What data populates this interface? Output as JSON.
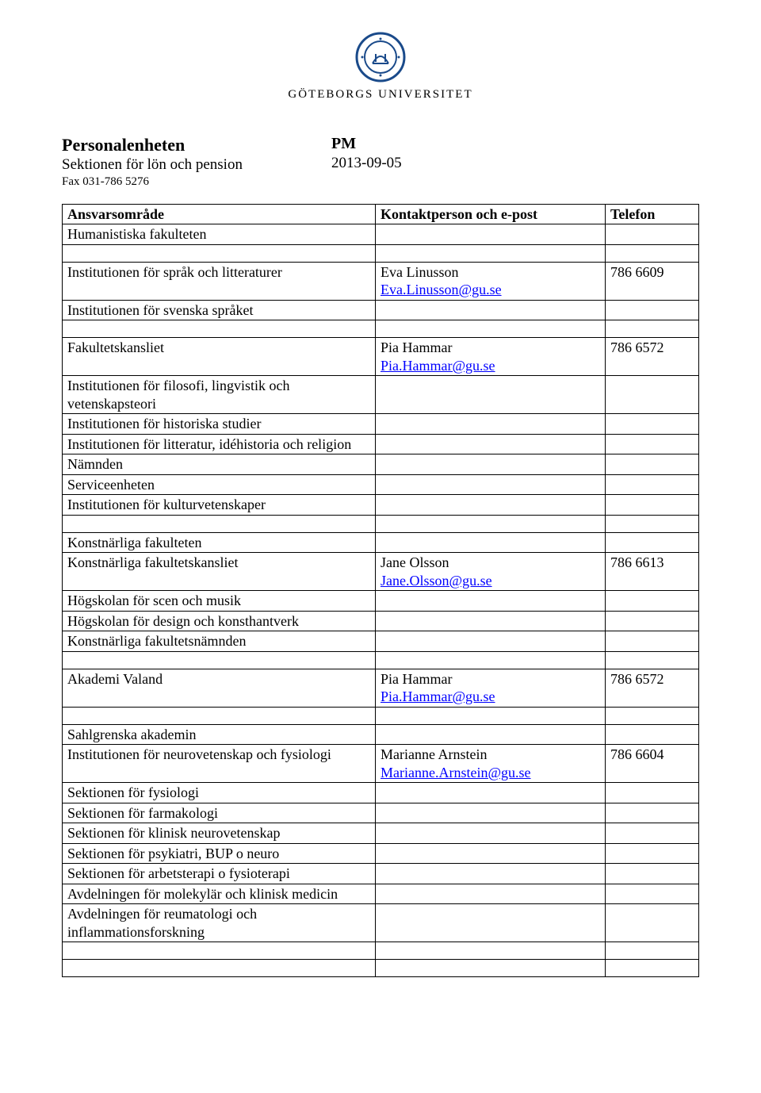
{
  "logo": {
    "seal_color": "#1a4a8a",
    "text": "GÖTEBORGS UNIVERSITET"
  },
  "header": {
    "unit": "Personalenheten",
    "section": "Sektionen för lön och pension",
    "fax": "Fax 031-786 5276",
    "doc_type": "PM",
    "date": "2013-09-05"
  },
  "table": {
    "columns": [
      "Ansvarsområde",
      "Kontaktperson och e-post",
      "Telefon"
    ],
    "rows": [
      {
        "c1": "Humanistiska fakulteten",
        "c1_bold": true,
        "c2": "",
        "c3": ""
      },
      {
        "spacer": true
      },
      {
        "c1": "Institutionen för språk och litteraturer",
        "c2_name": "Eva Linusson",
        "c2_email": "Eva.Linusson@gu.se",
        "c3": "786 6609"
      },
      {
        "c1": "Institutionen för svenska språket",
        "c2": "",
        "c3": ""
      },
      {
        "spacer": true
      },
      {
        "c1": "Fakultetskansliet",
        "c2_name": "Pia Hammar",
        "c2_email": "Pia.Hammar@gu.se",
        "c3": "786 6572"
      },
      {
        "c1": "Institutionen för filosofi, lingvistik och vetenskapsteori",
        "c2": "",
        "c3": ""
      },
      {
        "c1": "Institutionen för historiska studier",
        "c2": "",
        "c3": ""
      },
      {
        "c1": "Institutionen för litteratur, idéhistoria och religion",
        "c2": "",
        "c3": ""
      },
      {
        "c1": "Nämnden",
        "c2": "",
        "c3": ""
      },
      {
        "c1": "Serviceenheten",
        "c2": "",
        "c3": ""
      },
      {
        "c1": "Institutionen för kulturvetenskaper",
        "c2": "",
        "c3": ""
      },
      {
        "spacer": true
      },
      {
        "c1": "Konstnärliga fakulteten",
        "c1_bold": true,
        "c2": "",
        "c3": ""
      },
      {
        "c1": "Konstnärliga fakultetskansliet",
        "c2_name": "Jane Olsson",
        "c2_email": "Jane.Olsson@gu.se",
        "c3": "786 6613"
      },
      {
        "c1": "Högskolan för scen och musik",
        "c2": "",
        "c3": ""
      },
      {
        "c1": "Högskolan för design och konsthantverk",
        "c2": "",
        "c3": ""
      },
      {
        "c1": "Konstnärliga fakultetsnämnden",
        "c2": "",
        "c3": ""
      },
      {
        "spacer": true
      },
      {
        "c1": "Akademi Valand",
        "c2_name": "Pia Hammar",
        "c2_email": "Pia.Hammar@gu.se",
        "c3": "786 6572"
      },
      {
        "spacer": true
      },
      {
        "c1": "Sahlgrenska akademin",
        "c1_bold": true,
        "c2": "",
        "c3": ""
      },
      {
        "c1": "Institutionen för neurovetenskap och fysiologi",
        "c2_name": "Marianne Arnstein",
        "c2_email": "Marianne.Arnstein@gu.se",
        "c3": "786 6604"
      },
      {
        "c1": "Sektionen för fysiologi",
        "c2": "",
        "c3": ""
      },
      {
        "c1": "Sektionen för farmakologi",
        "c2": "",
        "c3": ""
      },
      {
        "c1": "Sektionen för klinisk neurovetenskap",
        "c2": "",
        "c3": ""
      },
      {
        "c1": "Sektionen för psykiatri, BUP o neuro",
        "c2": "",
        "c3": ""
      },
      {
        "c1": "Sektionen för arbetsterapi o fysioterapi",
        "c2": "",
        "c3": ""
      },
      {
        "c1": "Avdelningen för molekylär och klinisk medicin",
        "c2": "",
        "c3": ""
      },
      {
        "c1": "Avdelningen för reumatologi och inflammationsforskning",
        "c2": "",
        "c3": ""
      },
      {
        "spacer": true
      },
      {
        "spacer": true
      }
    ]
  }
}
